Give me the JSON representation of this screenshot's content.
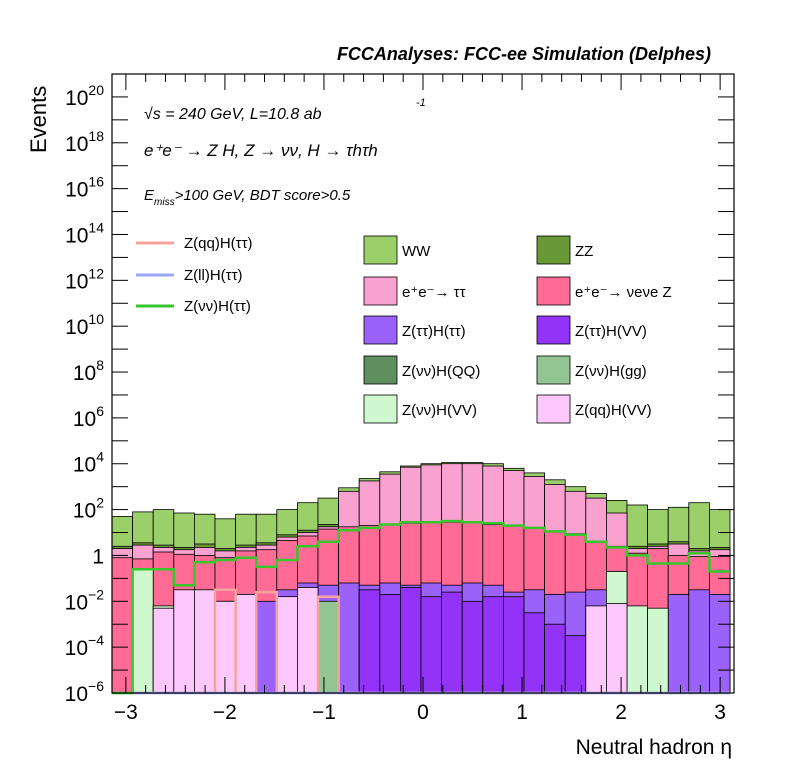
{
  "chart_data": {
    "type": "area",
    "title": "FCCAnalyses: FCC-ee Simulation (Delphes)",
    "xlabel": "Neutral hadron η",
    "ylabel": "Events",
    "xlim": [
      -3.14,
      3.14
    ],
    "ylim_log10": [
      -6,
      21
    ],
    "log_y": true,
    "grid": false,
    "x_tick_labels": [
      "−3",
      "−2",
      "−1",
      "0",
      "1",
      "2",
      "3"
    ],
    "x_tick_values": [
      -3,
      -2,
      -1,
      0,
      1,
      2,
      3
    ],
    "y_tick_labels": [
      {
        "base": "10",
        "exp": "−6",
        "pow": -6
      },
      {
        "base": "10",
        "exp": "−4",
        "pow": -4
      },
      {
        "base": "10",
        "exp": "−2",
        "pow": -2
      },
      {
        "base": "1",
        "exp": "",
        "pow": 0
      },
      {
        "base": "10",
        "exp": "2",
        "pow": 2
      },
      {
        "base": "10",
        "exp": "4",
        "pow": 4
      },
      {
        "base": "10",
        "exp": "6",
        "pow": 6
      },
      {
        "base": "10",
        "exp": "8",
        "pow": 8
      },
      {
        "base": "10",
        "exp": "10",
        "pow": 10
      },
      {
        "base": "10",
        "exp": "12",
        "pow": 12
      },
      {
        "base": "10",
        "exp": "14",
        "pow": 14
      },
      {
        "base": "10",
        "exp": "16",
        "pow": 16
      },
      {
        "base": "10",
        "exp": "18",
        "pow": 18
      },
      {
        "base": "10",
        "exp": "20",
        "pow": 20
      }
    ],
    "annotations": {
      "energy": "√s = 240 GeV, L=10.8 ab",
      "lumi_exp": "-1",
      "process": "e⁺e⁻ → Z H, Z → νν, H → τhτh",
      "cut_main": "E",
      "cut_sub": "miss",
      "cut_rest": ">100 GeV, BDT score>0.5"
    },
    "bin_edges": [
      -3.14,
      -2.932,
      -2.724,
      -2.516,
      -2.308,
      -2.1,
      -1.892,
      -1.684,
      -1.476,
      -1.268,
      -1.06,
      -0.852,
      -0.644,
      -0.436,
      -0.228,
      -0.02,
      0.188,
      0.396,
      0.604,
      0.812,
      1.02,
      1.228,
      1.436,
      1.644,
      1.852,
      2.06,
      2.268,
      2.476,
      2.684,
      2.892,
      3.1
    ],
    "stack_log10_tops": {
      "WW": [
        1.7,
        1.9,
        2.0,
        1.85,
        1.8,
        1.6,
        1.8,
        1.8,
        2.0,
        2.3,
        2.5,
        2.95,
        3.35,
        3.65,
        3.9,
        4.0,
        4.05,
        4.05,
        4.0,
        3.8,
        3.6,
        3.3,
        3.0,
        2.7,
        2.4,
        2.2,
        2.0,
        2.1,
        2.3,
        2.0
      ],
      "ZZ": [
        0.4,
        0.55,
        0.45,
        0.35,
        0.5,
        0.3,
        0.45,
        0.55,
        0.9,
        1.1,
        1.35,
        1.4,
        1.45,
        1.5,
        1.55,
        1.6,
        1.6,
        1.6,
        1.5,
        1.45,
        1.3,
        1.2,
        1.1,
        0.8,
        0.65,
        0.4,
        0.5,
        0.6,
        0.3,
        0.35
      ],
      "ee_tautau": [
        0.3,
        0.45,
        0.35,
        0.25,
        0.35,
        0.2,
        0.35,
        0.45,
        0.8,
        1.0,
        1.25,
        2.8,
        3.25,
        3.55,
        3.85,
        3.95,
        4.0,
        4.0,
        3.9,
        3.7,
        3.45,
        3.1,
        2.8,
        2.5,
        1.85,
        0.3,
        0.4,
        0.5,
        0.2,
        0.25
      ],
      "ee_nunuZ": [
        -0.1,
        -0.15,
        0.15,
        0.05,
        0.0,
        -0.1,
        0.2,
        0.25,
        0.65,
        0.85,
        1.15,
        1.25,
        1.3,
        1.35,
        1.4,
        1.45,
        1.45,
        1.45,
        1.35,
        1.3,
        1.2,
        1.05,
        0.95,
        0.6,
        0.4,
        0.1,
        0.3,
        0.0,
        -0.05,
        -0.05
      ],
      "Ztt_Htt": [
        -6,
        -2.2,
        -2.5,
        -2,
        -2.5,
        -2,
        -2,
        -2,
        -1.5,
        -1.2,
        -1.3,
        -1.2,
        -1.3,
        -1.2,
        -1.3,
        -1.2,
        -1.3,
        -1.2,
        -1.3,
        -1.6,
        -1.5,
        -1.7,
        -1.6,
        -1.5,
        -1.6,
        -2.2,
        -2.4,
        -1.7,
        -1.5,
        -1.7
      ],
      "Ztt_HVV": [
        -6,
        -6,
        -6,
        -6,
        -6,
        -6,
        -6,
        -6,
        -6,
        -6,
        -6,
        -6,
        -1.5,
        -1.7,
        -1.4,
        -1.8,
        -1.6,
        -2,
        -1.8,
        -1.8,
        -2.5,
        -3,
        -3.5,
        -6,
        -6,
        -6,
        -6,
        -6,
        -6,
        -6
      ],
      "Znn_HQQ": [
        -6,
        -6,
        -6,
        -6,
        -6,
        -6,
        -6,
        -6,
        -2,
        -6,
        -6,
        -6,
        -6,
        -6,
        -6,
        -6,
        -6,
        -6,
        -6,
        -6,
        -6,
        -6,
        -6,
        -6,
        -6,
        -6,
        -6,
        -6,
        -6,
        -6
      ],
      "Znn_Hgg": [
        -6,
        -6,
        -6,
        -6,
        -6,
        -6,
        -6,
        -6,
        -6,
        -6,
        -2,
        -6,
        -6,
        -6,
        -6,
        -6,
        -6,
        -6,
        -6,
        -6,
        -6,
        -6,
        -6,
        -6,
        -6,
        -6,
        -6,
        -6,
        -6,
        -6
      ],
      "Znn_HVV": [
        -6,
        -0.6,
        -2.2,
        -6,
        -6,
        -6,
        -6,
        -6,
        -6,
        -6,
        -6,
        -6,
        -6,
        -6,
        -6,
        -6,
        -6,
        -6,
        -6,
        -6,
        -6,
        -6,
        -6,
        -6,
        -0.7,
        -2.2,
        -2.3,
        -6,
        -6,
        -6
      ],
      "Zqq_HVV": [
        -6,
        -6,
        -2.3,
        -1.5,
        -1.5,
        -2,
        -1.7,
        -6,
        -1.8,
        -1.4,
        -6,
        -6,
        -6,
        -6,
        -6,
        -6,
        -6,
        -6,
        -6,
        -6,
        -6,
        -6,
        -6,
        -2.2,
        -2.1,
        -6,
        -6,
        -6,
        -6,
        -6
      ]
    },
    "line_log10": {
      "Zqq_Htt": [
        -6,
        -6,
        -6,
        -6,
        -6,
        -1.5,
        -6,
        -1.6,
        -6,
        -6,
        -1.8,
        -6,
        -6,
        -6,
        -6,
        -6,
        -6,
        -6,
        -6,
        -6,
        -6,
        -6,
        -6,
        -6,
        -6,
        -6,
        -6,
        -6,
        -6,
        -6
      ],
      "Zll_Htt": [
        -6,
        -6,
        -6,
        -6,
        -6,
        -6,
        -6,
        -6,
        -6,
        -6,
        -6,
        -6,
        -6,
        -6,
        -6,
        -6,
        -6,
        -6,
        -6,
        -6,
        -6,
        -6,
        -6,
        -6,
        -6,
        -6,
        -6,
        -6,
        -6,
        -6
      ],
      "Znn_Htt": [
        -6,
        -0.6,
        -0.6,
        -1.3,
        -0.3,
        -0.2,
        -0.1,
        -0.5,
        -0.2,
        0.4,
        0.6,
        1.1,
        1.2,
        1.35,
        1.45,
        1.45,
        1.5,
        1.45,
        1.4,
        1.3,
        1.2,
        1.05,
        0.9,
        0.6,
        0.35,
        0.0,
        -0.35,
        -0.35,
        0.1,
        -0.7
      ]
    },
    "series": [
      {
        "key": "Zqq_Htt",
        "name": "Z(qq)H(ττ)",
        "color": "#f4a39d",
        "style": "line"
      },
      {
        "key": "Zll_Htt",
        "name": "Z(ll)H(ττ)",
        "color": "#9aa6f6",
        "style": "line"
      },
      {
        "key": "Znn_Htt",
        "name": "Z(νν)H(ττ)",
        "color": "#37c62c",
        "style": "line"
      },
      {
        "key": "WW",
        "name": "WW",
        "color": "#9bcf69",
        "style": "fill"
      },
      {
        "key": "ZZ",
        "name": "ZZ",
        "color": "#689936",
        "style": "fill"
      },
      {
        "key": "ee_tautau",
        "name": "e⁺e⁻→ ττ",
        "color": "#f9a1cf",
        "style": "fill"
      },
      {
        "key": "ee_nunuZ",
        "name": "e⁺e⁻→ νeνe Z",
        "color": "#ff6b94",
        "style": "fill"
      },
      {
        "key": "Ztt_Htt",
        "name": "Z(ττ)H(ττ)",
        "color": "#9b62fa",
        "style": "fill"
      },
      {
        "key": "Ztt_HVV",
        "name": "Z(ττ)H(VV)",
        "color": "#9333f7",
        "style": "fill"
      },
      {
        "key": "Znn_HQQ",
        "name": "Z(νν)H(QQ)",
        "color": "#5f8f5f",
        "style": "fill"
      },
      {
        "key": "Znn_Hgg",
        "name": "Z(νν)H(gg)",
        "color": "#93c593",
        "style": "fill"
      },
      {
        "key": "Znn_HVV",
        "name": "Z(νν)H(VV)",
        "color": "#cff8cf",
        "style": "fill"
      },
      {
        "key": "Zqq_HVV",
        "name": "Z(qq)H(VV)",
        "color": "#fdc8fb",
        "style": "fill"
      }
    ]
  }
}
